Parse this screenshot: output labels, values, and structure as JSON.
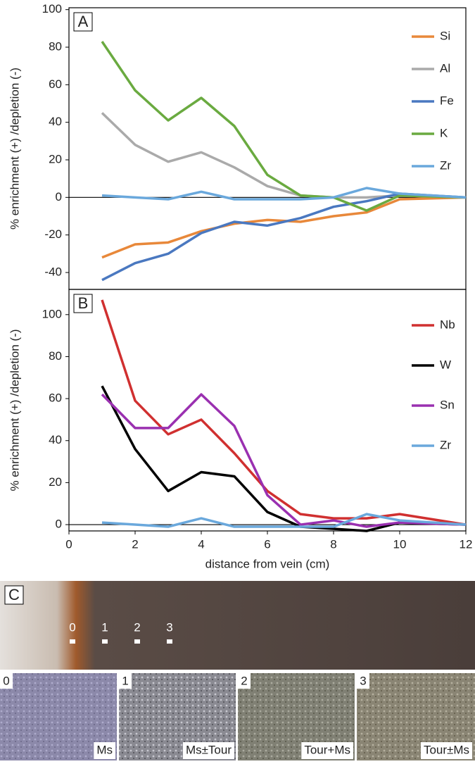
{
  "chart_data": [
    {
      "type": "line",
      "panel": "A",
      "ylabel": "% enrichment (+) /depletion (-)",
      "x": [
        1,
        2,
        3,
        4,
        5,
        6,
        7,
        8,
        9,
        10,
        12
      ],
      "xlim": [
        0,
        12
      ],
      "ylim": [
        -49,
        101
      ],
      "yticks": [
        -40,
        -20,
        0,
        20,
        40,
        60,
        80,
        100
      ],
      "series": [
        {
          "name": "Si",
          "color": "#e8883a",
          "values": [
            -32,
            -25,
            -24,
            -18,
            -14,
            -12,
            -13,
            -10,
            -8,
            -1,
            0
          ]
        },
        {
          "name": "Al",
          "color": "#aaaaaa",
          "values": [
            45,
            28,
            19,
            24,
            16,
            6,
            1,
            0,
            0,
            1,
            0
          ]
        },
        {
          "name": "Fe",
          "color": "#4a78c0",
          "values": [
            -44,
            -35,
            -30,
            -19,
            -13,
            -15,
            -11,
            -5,
            -2,
            2,
            0
          ]
        },
        {
          "name": "K",
          "color": "#6aaa40",
          "values": [
            83,
            57,
            41,
            53,
            38,
            12,
            1,
            0,
            -7,
            1,
            0
          ]
        },
        {
          "name": "Zr",
          "color": "#6aa8dc",
          "values": [
            1,
            0,
            -1,
            3,
            -1,
            -1,
            -1,
            0,
            5,
            2,
            0
          ]
        }
      ]
    },
    {
      "type": "line",
      "panel": "B",
      "ylabel": "% enrichment (+) /depletion (-)",
      "xlabel": "distance from vein (cm)",
      "x": [
        1,
        2,
        3,
        4,
        5,
        6,
        7,
        8,
        9,
        10,
        12
      ],
      "xlim": [
        0,
        12
      ],
      "xticks": [
        0,
        2,
        4,
        6,
        8,
        10,
        12
      ],
      "ylim": [
        -3,
        112
      ],
      "yticks": [
        0,
        20,
        40,
        60,
        80,
        100
      ],
      "series": [
        {
          "name": "Nb",
          "color": "#d03030",
          "values": [
            107,
            59,
            43,
            50,
            34,
            16,
            5,
            3,
            3,
            5,
            0
          ]
        },
        {
          "name": "W",
          "color": "#000000",
          "values": [
            66,
            36,
            16,
            25,
            23,
            6,
            -1,
            -2,
            -3,
            1,
            0
          ]
        },
        {
          "name": "Sn",
          "color": "#9a30b0",
          "values": [
            62,
            46,
            46,
            62,
            47,
            14,
            0,
            2,
            -1,
            1,
            0
          ]
        },
        {
          "name": "Zr",
          "color": "#6aa8dc",
          "values": [
            1,
            0,
            -1,
            3,
            -1,
            -1,
            -1,
            -1,
            5,
            2,
            0
          ]
        }
      ]
    }
  ],
  "photos": {
    "label": "C",
    "scale_marks": [
      "0",
      "1",
      "2",
      "3"
    ],
    "thin_sections": [
      {
        "label": "0",
        "mineral": "Ms"
      },
      {
        "label": "1",
        "mineral": "Ms±Tour"
      },
      {
        "label": "2",
        "mineral": "Tour+Ms"
      },
      {
        "label": "3",
        "mineral": "Tour±Ms"
      }
    ]
  }
}
